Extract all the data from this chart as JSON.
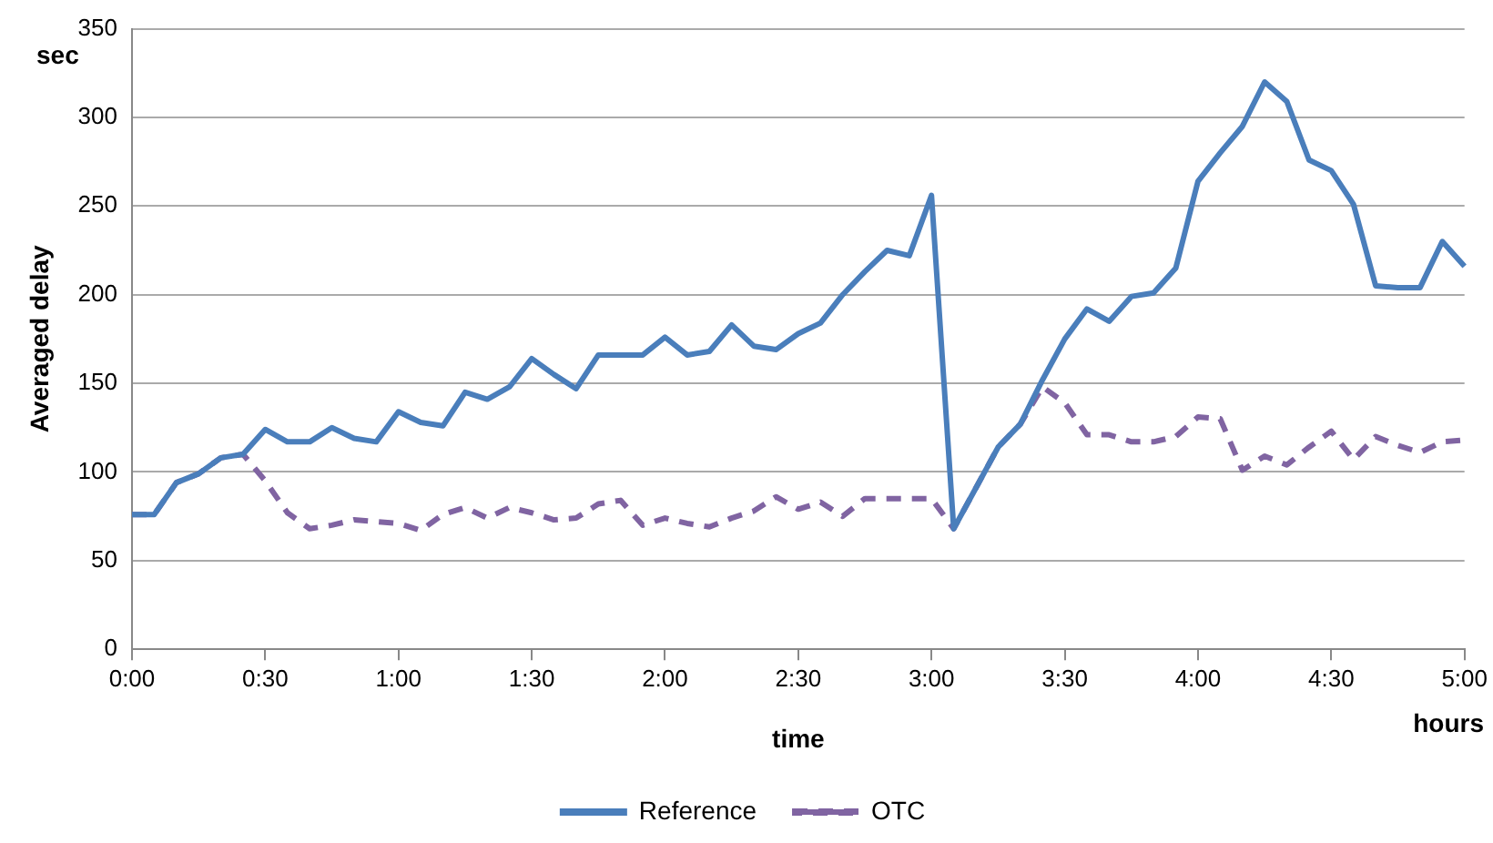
{
  "chart_data": {
    "type": "line",
    "xlabel": "time",
    "ylabel": "Averaged delay",
    "annotations": [
      "sec",
      "hours"
    ],
    "categories": [
      "0:00",
      null,
      null,
      null,
      null,
      null,
      "0:30",
      null,
      null,
      null,
      null,
      null,
      "1:00",
      null,
      null,
      null,
      null,
      null,
      "1:30",
      null,
      null,
      null,
      null,
      null,
      "2:00",
      null,
      null,
      null,
      null,
      null,
      "2:30",
      null,
      null,
      null,
      null,
      null,
      "3:00",
      null,
      null,
      null,
      null,
      null,
      "3:30",
      null,
      null,
      null,
      null,
      null,
      "4:00",
      null,
      null,
      null,
      null,
      null,
      "4:30",
      null,
      null,
      null,
      null,
      null,
      "5:00"
    ],
    "series": [
      {
        "name": "Reference",
        "color": "#4a7ebb",
        "line_style": "solid",
        "values": [
          76,
          76,
          94,
          99,
          108,
          110,
          124,
          117,
          117,
          125,
          119,
          117,
          134,
          128,
          126,
          145,
          141,
          148,
          164,
          155,
          147,
          166,
          166,
          166,
          176,
          166,
          168,
          183,
          171,
          169,
          178,
          184,
          200,
          213,
          225,
          222,
          256,
          68,
          91,
          114,
          127,
          152,
          175,
          192,
          185,
          199,
          201,
          215,
          264,
          280,
          295,
          320,
          309,
          276,
          270,
          251,
          205,
          204,
          204,
          230,
          216
        ]
      },
      {
        "name": "OTC",
        "color": "#8064a2",
        "line_style": "dashed",
        "values": [
          76,
          76,
          94,
          99,
          108,
          110,
          95,
          77,
          68,
          70,
          73,
          72,
          71,
          67,
          76,
          80,
          74,
          80,
          77,
          73,
          74,
          82,
          84,
          70,
          74,
          71,
          69,
          74,
          78,
          86,
          79,
          83,
          75,
          85,
          85,
          85,
          85,
          68,
          91,
          114,
          127,
          148,
          139,
          121,
          121,
          117,
          117,
          120,
          131,
          130,
          101,
          109,
          104,
          114,
          123,
          107,
          120,
          115,
          111,
          117,
          118
        ]
      }
    ],
    "ylim": [
      0,
      350
    ],
    "yticks": [
      0,
      50,
      100,
      150,
      200,
      250,
      300,
      350
    ],
    "grid": "y",
    "legend": "bottom",
    "marker": "none"
  }
}
